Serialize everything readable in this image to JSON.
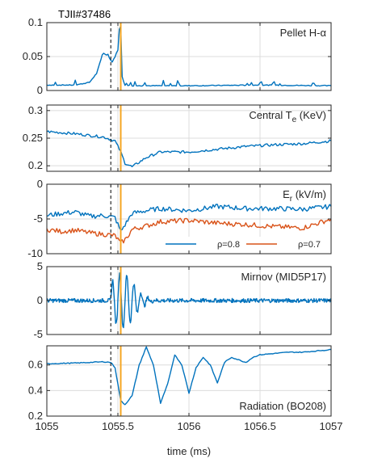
{
  "figure": {
    "shot_label": "TJII#37486",
    "xlabel": "time (ms)",
    "x_ticks": [
      "1055",
      "1055.5",
      "1056",
      "1056.5",
      "1057"
    ],
    "xlim": [
      1055,
      1057
    ],
    "markers": {
      "black_line_x": 1055.45,
      "orange_line_x": 1055.52,
      "black_color": "#000000",
      "orange_color": "#f5a623"
    }
  },
  "chart_data": [
    {
      "type": "line",
      "title": "Pellet H-α",
      "ylim": [
        0,
        0.1
      ],
      "y_ticks": [
        "0.1",
        "0.05",
        "0"
      ],
      "y_tick_values": [
        0.1,
        0.05,
        0
      ],
      "grid": true,
      "series": [
        {
          "color": "#0072BD",
          "x": [
            1055.0,
            1055.2,
            1055.3,
            1055.35,
            1055.38,
            1055.4,
            1055.42,
            1055.44,
            1055.46,
            1055.48,
            1055.5,
            1055.51,
            1055.52,
            1055.53,
            1055.55,
            1055.6,
            1056.0,
            1056.5,
            1057.0
          ],
          "y": [
            0.008,
            0.008,
            0.012,
            0.025,
            0.045,
            0.055,
            0.052,
            0.048,
            0.042,
            0.05,
            0.06,
            0.09,
            0.095,
            0.02,
            0.008,
            0.007,
            0.007,
            0.008,
            0.007
          ]
        }
      ]
    },
    {
      "type": "line",
      "title": "Central T",
      "title_sub": "e",
      "title_unit": " (KeV)",
      "ylim": [
        0.19,
        0.31
      ],
      "y_ticks": [
        "0.3",
        "0.25",
        "0.2"
      ],
      "y_tick_values": [
        0.3,
        0.25,
        0.2
      ],
      "grid": true,
      "series": [
        {
          "color": "#0072BD",
          "x": [
            1055.0,
            1055.1,
            1055.2,
            1055.3,
            1055.4,
            1055.48,
            1055.52,
            1055.55,
            1055.6,
            1055.7,
            1055.8,
            1056.0,
            1056.2,
            1056.4,
            1056.6,
            1056.8,
            1057.0
          ],
          "y": [
            0.262,
            0.26,
            0.258,
            0.255,
            0.252,
            0.245,
            0.225,
            0.205,
            0.198,
            0.215,
            0.225,
            0.225,
            0.23,
            0.235,
            0.238,
            0.24,
            0.245
          ]
        }
      ]
    },
    {
      "type": "line",
      "title": "E",
      "title_sub": "r",
      "title_unit": " (kV/m)",
      "ylim": [
        -10,
        0
      ],
      "y_ticks": [
        "0",
        "-5",
        "-10"
      ],
      "y_tick_values": [
        0,
        -5,
        -10
      ],
      "grid": true,
      "legend_position": "bottom-right",
      "series": [
        {
          "name": "ρ=0.8",
          "color": "#0072BD",
          "x": [
            1055.0,
            1055.1,
            1055.2,
            1055.3,
            1055.4,
            1055.48,
            1055.52,
            1055.56,
            1055.6,
            1055.7,
            1055.8,
            1056.0,
            1056.2,
            1056.4,
            1056.6,
            1056.8,
            1057.0
          ],
          "y": [
            -4.5,
            -4.2,
            -4.0,
            -4.6,
            -4.5,
            -4.8,
            -6.8,
            -5.5,
            -4.2,
            -3.8,
            -3.5,
            -3.8,
            -3.2,
            -3.5,
            -3.5,
            -3.6,
            -3.2
          ]
        },
        {
          "name": "ρ=0.7",
          "color": "#D95319",
          "x": [
            1055.0,
            1055.1,
            1055.2,
            1055.3,
            1055.4,
            1055.48,
            1055.52,
            1055.56,
            1055.6,
            1055.7,
            1055.8,
            1056.0,
            1056.2,
            1056.4,
            1056.6,
            1056.8,
            1057.0
          ],
          "y": [
            -6.5,
            -6.8,
            -6.6,
            -7.0,
            -7.2,
            -7.4,
            -8.5,
            -7.8,
            -6.5,
            -6.0,
            -5.4,
            -5.2,
            -5.6,
            -5.8,
            -6.1,
            -6.3,
            -5.0
          ]
        }
      ]
    },
    {
      "type": "line",
      "title": "Mirnov (MID5P17)",
      "ylim": [
        -5,
        5
      ],
      "y_ticks": [
        "5",
        "0",
        "-5"
      ],
      "y_tick_values": [
        5,
        0,
        -5
      ],
      "grid": true,
      "series": [
        {
          "color": "#0072BD",
          "oscillation": {
            "center_x": 1055.5,
            "peak_amplitude": 4,
            "baseline_noise": 0.3
          }
        }
      ]
    },
    {
      "type": "line",
      "title": "Radiation (BO208)",
      "ylim": [
        0.2,
        0.75
      ],
      "y_ticks": [
        "0.6",
        "0.4",
        "0.2"
      ],
      "y_tick_values": [
        0.6,
        0.4,
        0.2
      ],
      "grid": true,
      "series": [
        {
          "color": "#0072BD",
          "x": [
            1055.0,
            1055.2,
            1055.3,
            1055.4,
            1055.45,
            1055.48,
            1055.5,
            1055.52,
            1055.55,
            1055.6,
            1055.65,
            1055.7,
            1055.75,
            1055.8,
            1055.85,
            1055.9,
            1055.95,
            1056.0,
            1056.05,
            1056.1,
            1056.15,
            1056.2,
            1056.25,
            1056.3,
            1056.35,
            1056.4,
            1056.45,
            1056.5,
            1056.6,
            1056.7,
            1056.8,
            1056.9,
            1057.0
          ],
          "y": [
            0.61,
            0.615,
            0.62,
            0.625,
            0.62,
            0.58,
            0.45,
            0.32,
            0.29,
            0.36,
            0.6,
            0.74,
            0.6,
            0.3,
            0.45,
            0.68,
            0.6,
            0.38,
            0.58,
            0.66,
            0.6,
            0.46,
            0.62,
            0.66,
            0.64,
            0.62,
            0.66,
            0.68,
            0.69,
            0.7,
            0.7,
            0.71,
            0.72
          ]
        }
      ]
    }
  ]
}
